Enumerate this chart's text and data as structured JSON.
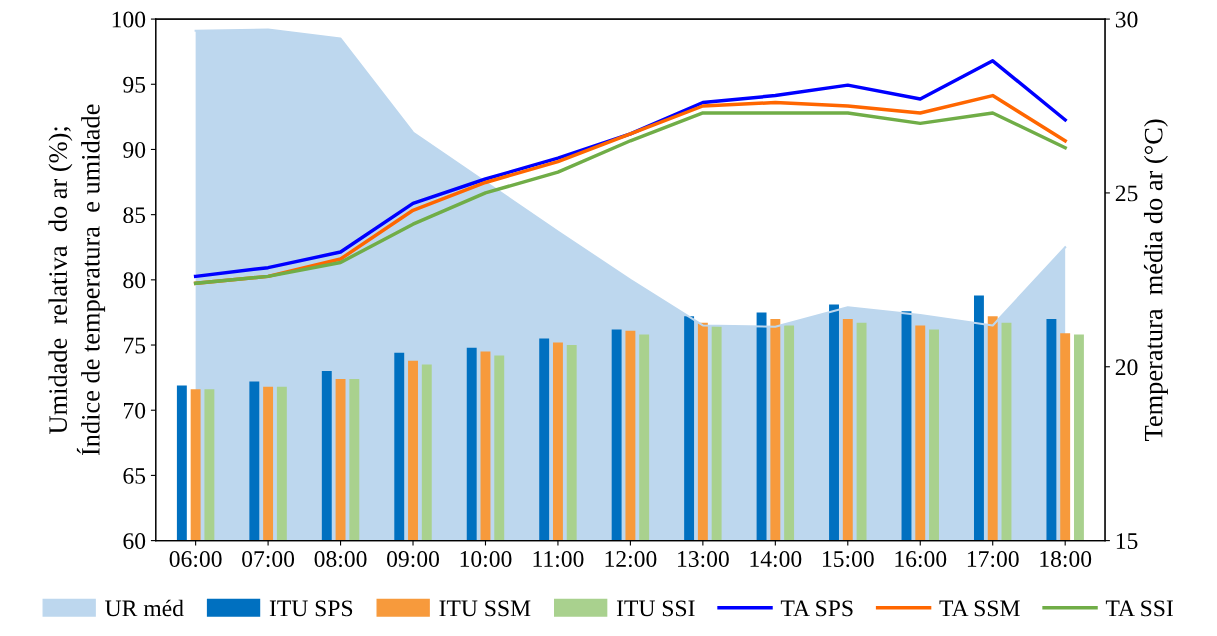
{
  "chart_data": {
    "type": "bar",
    "ylabel": "Umidade  relativa  do ar (%);\nÍndice de temperatura  e umidade",
    "y2label": "Temperatura  média do ar (°C)",
    "categories": [
      "06:00",
      "07:00",
      "08:00",
      "09:00",
      "10:00",
      "11:00",
      "12:00",
      "13:00",
      "14:00",
      "15:00",
      "16:00",
      "17:00",
      "18:00"
    ],
    "series": [
      {
        "name": "UR méd",
        "type": "area",
        "color": "#bdd7ee",
        "values": [
          99.1,
          99.2,
          98.5,
          91.3,
          87.5,
          83.7,
          80.0,
          76.5,
          76.4,
          77.9,
          77.3,
          76.5,
          82.5
        ]
      },
      {
        "name": "ITU SPS",
        "color": "#0070c0",
        "values": [
          71.9,
          72.2,
          73.0,
          74.4,
          74.8,
          75.5,
          76.2,
          77.2,
          77.5,
          78.1,
          77.6,
          78.8,
          77.0
        ]
      },
      {
        "name": "ITU SSM",
        "color": "#f79a3c",
        "values": [
          71.6,
          71.8,
          72.4,
          73.8,
          74.5,
          75.2,
          76.1,
          76.7,
          77.0,
          77.0,
          76.5,
          77.2,
          75.9
        ]
      },
      {
        "name": "ITU SSI",
        "color": "#a9d18e",
        "values": [
          71.6,
          71.8,
          72.4,
          73.5,
          74.2,
          75.0,
          75.8,
          76.5,
          76.5,
          76.7,
          76.2,
          76.7,
          75.8
        ]
      },
      {
        "name": "TA SPS",
        "type": "line",
        "axis": "y2",
        "color": "#0000ff",
        "values": [
          22.6,
          22.85,
          23.3,
          24.7,
          25.4,
          26.0,
          26.7,
          27.6,
          27.8,
          28.1,
          27.7,
          28.8,
          27.1
        ]
      },
      {
        "name": "TA SSM",
        "type": "line",
        "axis": "y2",
        "color": "#ff6600",
        "values": [
          22.4,
          22.6,
          23.1,
          24.5,
          25.3,
          25.9,
          26.7,
          27.5,
          27.6,
          27.5,
          27.3,
          27.8,
          26.5
        ]
      },
      {
        "name": "TA SSI",
        "type": "line",
        "axis": "y2",
        "color": "#70ad47",
        "values": [
          22.4,
          22.6,
          23.0,
          24.1,
          25.0,
          25.6,
          26.5,
          27.3,
          27.3,
          27.3,
          27.0,
          27.3,
          26.3
        ]
      }
    ],
    "ylim": [
      60,
      100
    ],
    "yticks": [
      60,
      65,
      70,
      75,
      80,
      85,
      90,
      95,
      100
    ],
    "y2lim": [
      15,
      30
    ],
    "y2ticks": [
      15,
      20,
      25,
      30
    ],
    "grid": false,
    "legend": "bottom"
  }
}
